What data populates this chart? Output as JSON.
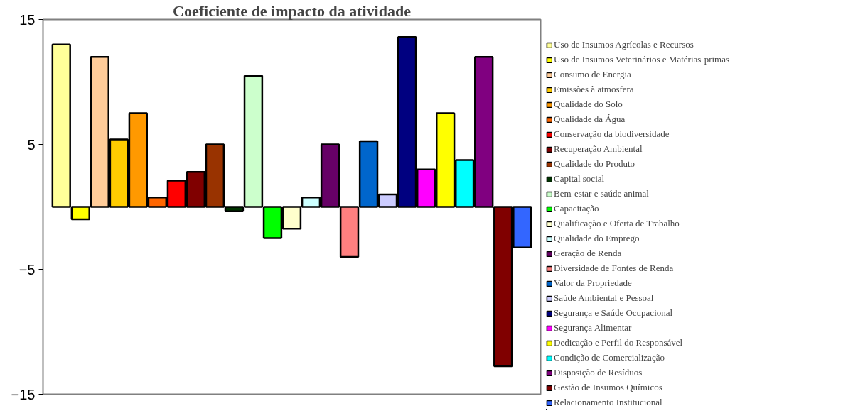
{
  "chart_data": {
    "type": "bar",
    "title": "Coeficiente de impacto da atividade",
    "categories": [
      null
    ],
    "ylim": [
      -15,
      15
    ],
    "yticks": [
      -15,
      -5,
      5,
      15
    ],
    "grid": false,
    "legend": "right",
    "tick_labels": "y",
    "series": [
      {
        "name": "Uso de Insumos Agrícolas e Recursos",
        "color": "#ffff99",
        "values": [
          13
        ]
      },
      {
        "name": "Uso de Insumos Veterinários e Matérias-primas",
        "color": "#ffff00",
        "values": [
          -1
        ]
      },
      {
        "name": "Consumo de Energia",
        "color": "#ffcc99",
        "values": [
          12
        ]
      },
      {
        "name": "Emissões à atmosfera",
        "color": "#ffcc00",
        "values": [
          5.4
        ]
      },
      {
        "name": "Qualidade do Solo",
        "color": "#ff9900",
        "values": [
          7.5
        ]
      },
      {
        "name": "Qualidade da Água",
        "color": "#ff6600",
        "values": [
          0.75
        ]
      },
      {
        "name": "Conservação da biodiversidade",
        "color": "#ff0000",
        "values": [
          2.1
        ]
      },
      {
        "name": "Recuperação Ambiental",
        "color": "#800000",
        "values": [
          2.8
        ]
      },
      {
        "name": "Qualidade do Produto",
        "color": "#993300",
        "values": [
          5
        ]
      },
      {
        "name": "Capital social",
        "color": "#003300",
        "values": [
          -0.35
        ]
      },
      {
        "name": "Bem-estar e saúde animal",
        "color": "#ccffcc",
        "values": [
          10.5
        ]
      },
      {
        "name": "Capacitação",
        "color": "#00ff00",
        "values": [
          -2.5
        ]
      },
      {
        "name": "Qualificação e Oferta de Trabalho",
        "color": "#ffffcc",
        "values": [
          -1.75
        ]
      },
      {
        "name": "Qualidade do Emprego",
        "color": "#ccffff",
        "values": [
          0.75
        ]
      },
      {
        "name": "Geração de Renda",
        "color": "#660066",
        "values": [
          5
        ]
      },
      {
        "name": "Diversidade de Fontes de Renda",
        "color": "#ff8080",
        "values": [
          -4
        ]
      },
      {
        "name": "Valor da Propriedade",
        "color": "#0066cc",
        "values": [
          5.25
        ]
      },
      {
        "name": "Saúde Ambiental e Pessoal",
        "color": "#ccccff",
        "values": [
          1
        ]
      },
      {
        "name": "Segurança e Saúde Ocupacional",
        "color": "#000080",
        "values": [
          13.6
        ]
      },
      {
        "name": "Segurança Alimentar",
        "color": "#ff00ff",
        "values": [
          3
        ]
      },
      {
        "name": "Dedicação e Perfil do Responsável",
        "color": "#ffff00",
        "values": [
          7.5
        ]
      },
      {
        "name": "Condição de Comercialização",
        "color": "#00ffff",
        "values": [
          3.75
        ]
      },
      {
        "name": "Disposição de Resíduos",
        "color": "#800080",
        "values": [
          12
        ]
      },
      {
        "name": "Gestão de Insumos Químicos",
        "color": "#800000",
        "values": [
          -12.75
        ]
      },
      {
        "name": "Relacionamento Institucional",
        "color": "#3366ff",
        "values": [
          -3.25
        ]
      }
    ]
  }
}
